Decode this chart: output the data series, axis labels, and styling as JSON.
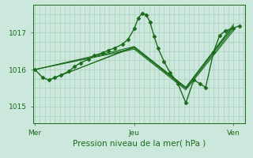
{
  "bg_color": "#cce8dc",
  "plot_bg_color": "#cce8dc",
  "grid_color": "#aacfbe",
  "line_color": "#1a6b1a",
  "marker_color": "#1a6b1a",
  "xlabel": "Pression niveau de la mer( hPa )",
  "xlabel_color": "#1a6b1a",
  "xtick_labels": [
    "Mer",
    "Jeu",
    "Ven"
  ],
  "xtick_positions": [
    0.0,
    0.5,
    1.0
  ],
  "ytick_labels": [
    "1015",
    "1016",
    "1017"
  ],
  "ytick_values": [
    1015,
    1016,
    1017
  ],
  "ylim": [
    1014.55,
    1017.75
  ],
  "xlim": [
    -0.01,
    1.06
  ],
  "series": [
    {
      "x": [
        0.0,
        0.04,
        0.07,
        0.1,
        0.13,
        0.17,
        0.2,
        0.23,
        0.27,
        0.3,
        0.34,
        0.37,
        0.4,
        0.44,
        0.47,
        0.5,
        0.52,
        0.54,
        0.56,
        0.58,
        0.6,
        0.62,
        0.65,
        0.68,
        0.72,
        0.76,
        0.8,
        0.83,
        0.86,
        0.9,
        0.93,
        0.96,
        1.0,
        1.03
      ],
      "y": [
        1016.0,
        1015.78,
        1015.72,
        1015.78,
        1015.85,
        1015.95,
        1016.08,
        1016.18,
        1016.28,
        1016.38,
        1016.45,
        1016.52,
        1016.58,
        1016.68,
        1016.82,
        1017.1,
        1017.38,
        1017.52,
        1017.48,
        1017.28,
        1016.9,
        1016.58,
        1016.22,
        1015.92,
        1015.62,
        1015.1,
        1015.72,
        1015.62,
        1015.52,
        1016.48,
        1016.92,
        1017.05,
        1017.12,
        1017.18
      ],
      "marker": "D",
      "markersize": 2.5,
      "linewidth": 1.0,
      "zorder": 5
    },
    {
      "x": [
        0.0,
        0.5,
        0.76,
        1.0
      ],
      "y": [
        1016.0,
        1016.55,
        1015.45,
        1017.05
      ],
      "marker": null,
      "markersize": 0,
      "linewidth": 0.7,
      "zorder": 2
    },
    {
      "x": [
        0.0,
        0.5,
        0.76,
        1.0
      ],
      "y": [
        1016.0,
        1016.58,
        1015.48,
        1017.1
      ],
      "marker": null,
      "markersize": 0,
      "linewidth": 0.7,
      "zorder": 2
    },
    {
      "x": [
        0.0,
        0.5,
        0.76,
        1.0
      ],
      "y": [
        1016.0,
        1016.62,
        1015.52,
        1017.15
      ],
      "marker": null,
      "markersize": 0,
      "linewidth": 0.7,
      "zorder": 2
    },
    {
      "x": [
        0.07,
        0.5,
        0.76,
        1.0
      ],
      "y": [
        1015.72,
        1016.6,
        1015.5,
        1017.18
      ],
      "marker": null,
      "markersize": 0,
      "linewidth": 0.7,
      "zorder": 2
    },
    {
      "x": [
        0.1,
        0.5,
        0.76,
        1.0
      ],
      "y": [
        1015.78,
        1016.62,
        1015.52,
        1017.22
      ],
      "marker": null,
      "markersize": 0,
      "linewidth": 0.7,
      "zorder": 2
    }
  ]
}
